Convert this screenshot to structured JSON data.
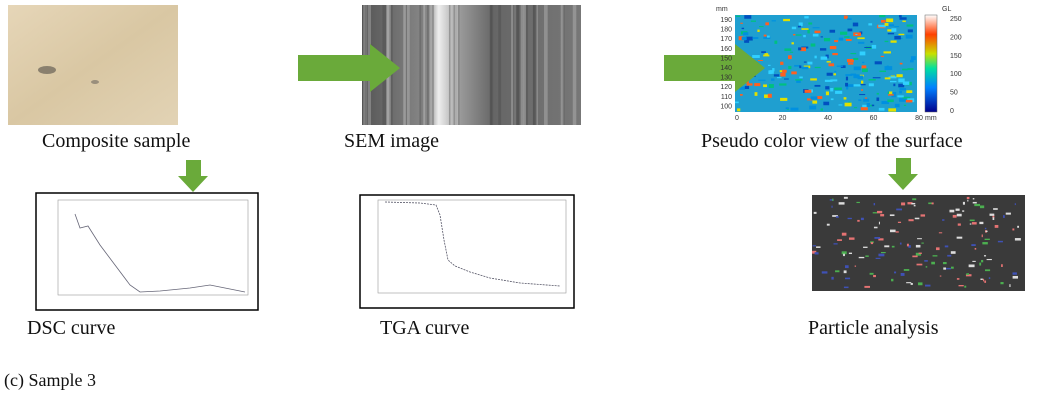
{
  "panels": {
    "composite": {
      "label": "Composite sample"
    },
    "sem": {
      "label": "SEM image"
    },
    "pseudo": {
      "label": "Pseudo color view of the surface",
      "y_unit": "mm",
      "y_ticks": [
        "190",
        "180",
        "170",
        "160",
        "150",
        "140",
        "130",
        "120",
        "110",
        "100"
      ],
      "x_ticks": [
        "0",
        "20",
        "40",
        "60",
        "80"
      ],
      "x_unit": "mm",
      "colorbar_title": "GL",
      "colorbar_ticks": [
        "250",
        "200",
        "150",
        "100",
        "50",
        "0"
      ]
    },
    "dsc": {
      "label": "DSC curve"
    },
    "tga": {
      "label": "TGA curve"
    },
    "particle": {
      "label": "Particle analysis"
    }
  },
  "caption": "(c) Sample 3"
}
